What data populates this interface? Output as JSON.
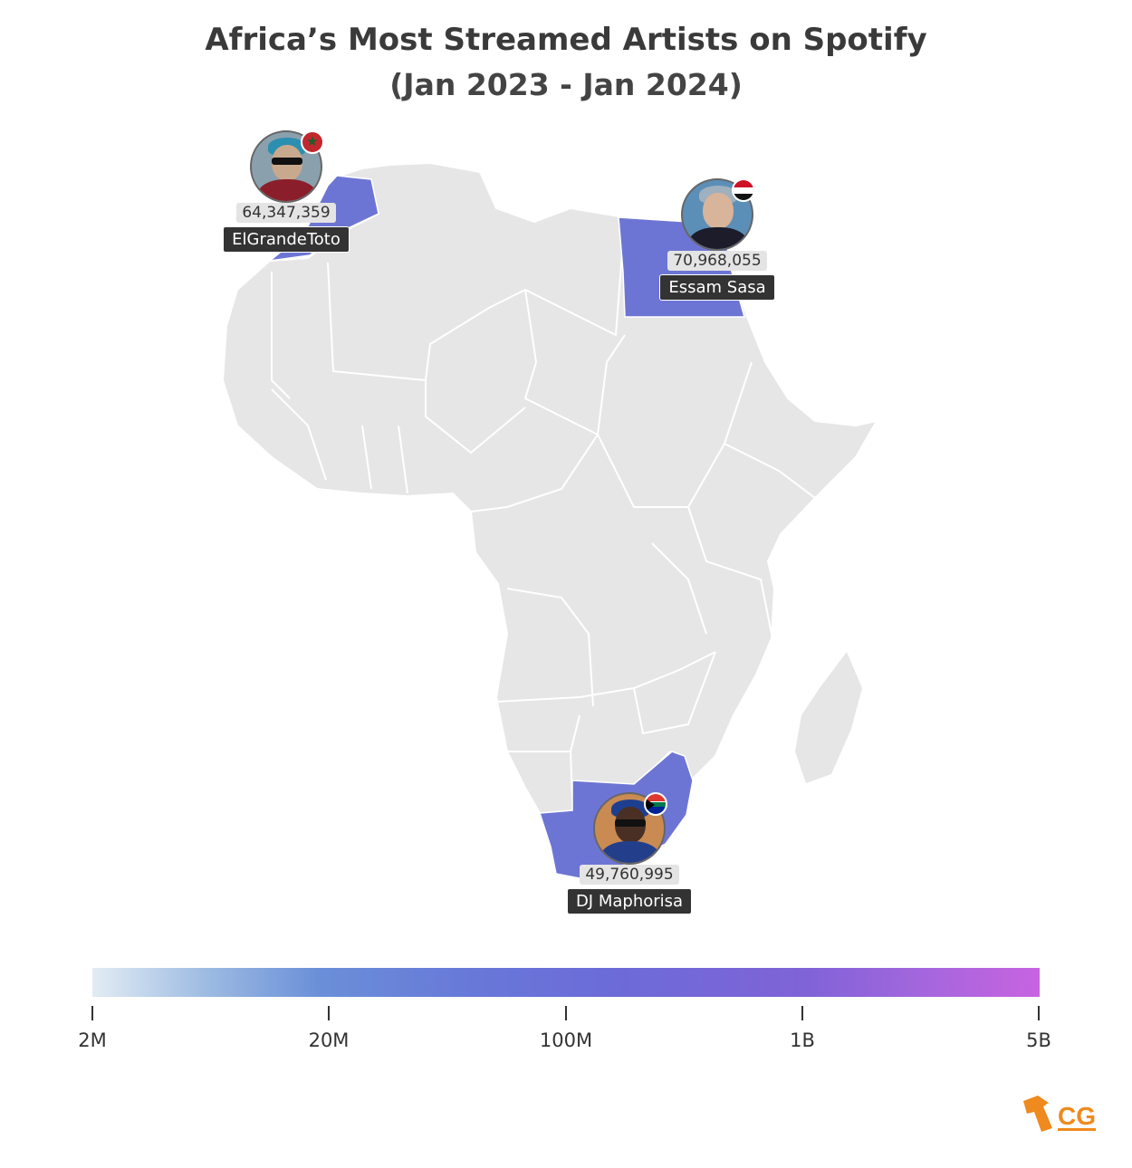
{
  "title": "Africa’s Most Streamed Artists on Spotify",
  "subtitle": "(Jan 2023 - Jan 2024)",
  "colors": {
    "land": "#e6e6e6",
    "border": "#ffffff",
    "highlight": "#6d75d4",
    "label_bg": "#333333",
    "value_bg": "#e4e4e4",
    "logo": "#ef8a1e"
  },
  "artists": [
    {
      "name": "ElGrandeToto",
      "streams": "64,347,359",
      "country": "Morocco",
      "flag_icon": "morocco-flag-icon"
    },
    {
      "name": "Essam Sasa",
      "streams": "70,968,055",
      "country": "Egypt",
      "flag_icon": "egypt-flag-icon"
    },
    {
      "name": "DJ Maphorisa",
      "streams": "49,760,995",
      "country": "South Africa",
      "flag_icon": "south-africa-flag-icon"
    }
  ],
  "legend": {
    "scale": "log",
    "ticks": [
      "2M",
      "20M",
      "100M",
      "1B",
      "5B"
    ]
  },
  "logo_text": "CG"
}
